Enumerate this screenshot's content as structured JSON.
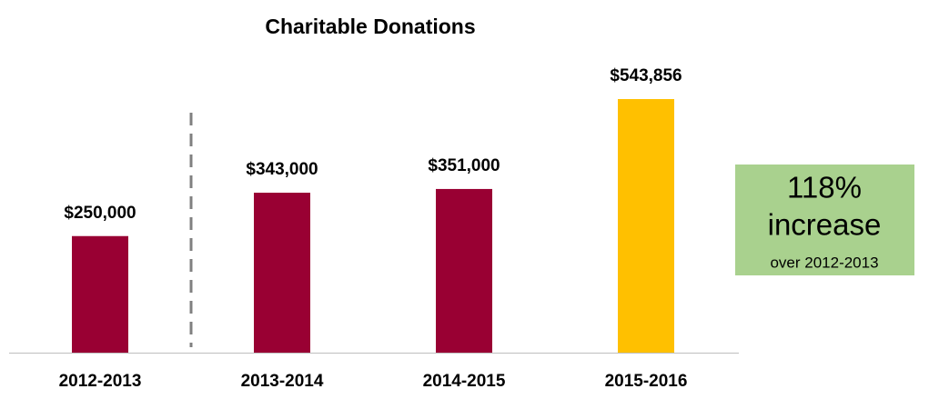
{
  "chart_data": {
    "type": "bar",
    "title": "Charitable Donations",
    "categories": [
      "2012-2013",
      "2013-2014",
      "2014-2015",
      "2015-2016"
    ],
    "values": [
      250000,
      343000,
      351000,
      543856
    ],
    "value_labels": [
      "$250,000",
      "$343,000",
      "$351,000",
      "$543,856"
    ],
    "colors": [
      "#990033",
      "#990033",
      "#990033",
      "#FFC000"
    ],
    "annotation": {
      "lines": [
        "118%",
        "increase",
        "over 2012-2013"
      ],
      "color": "#A9D18E"
    }
  }
}
